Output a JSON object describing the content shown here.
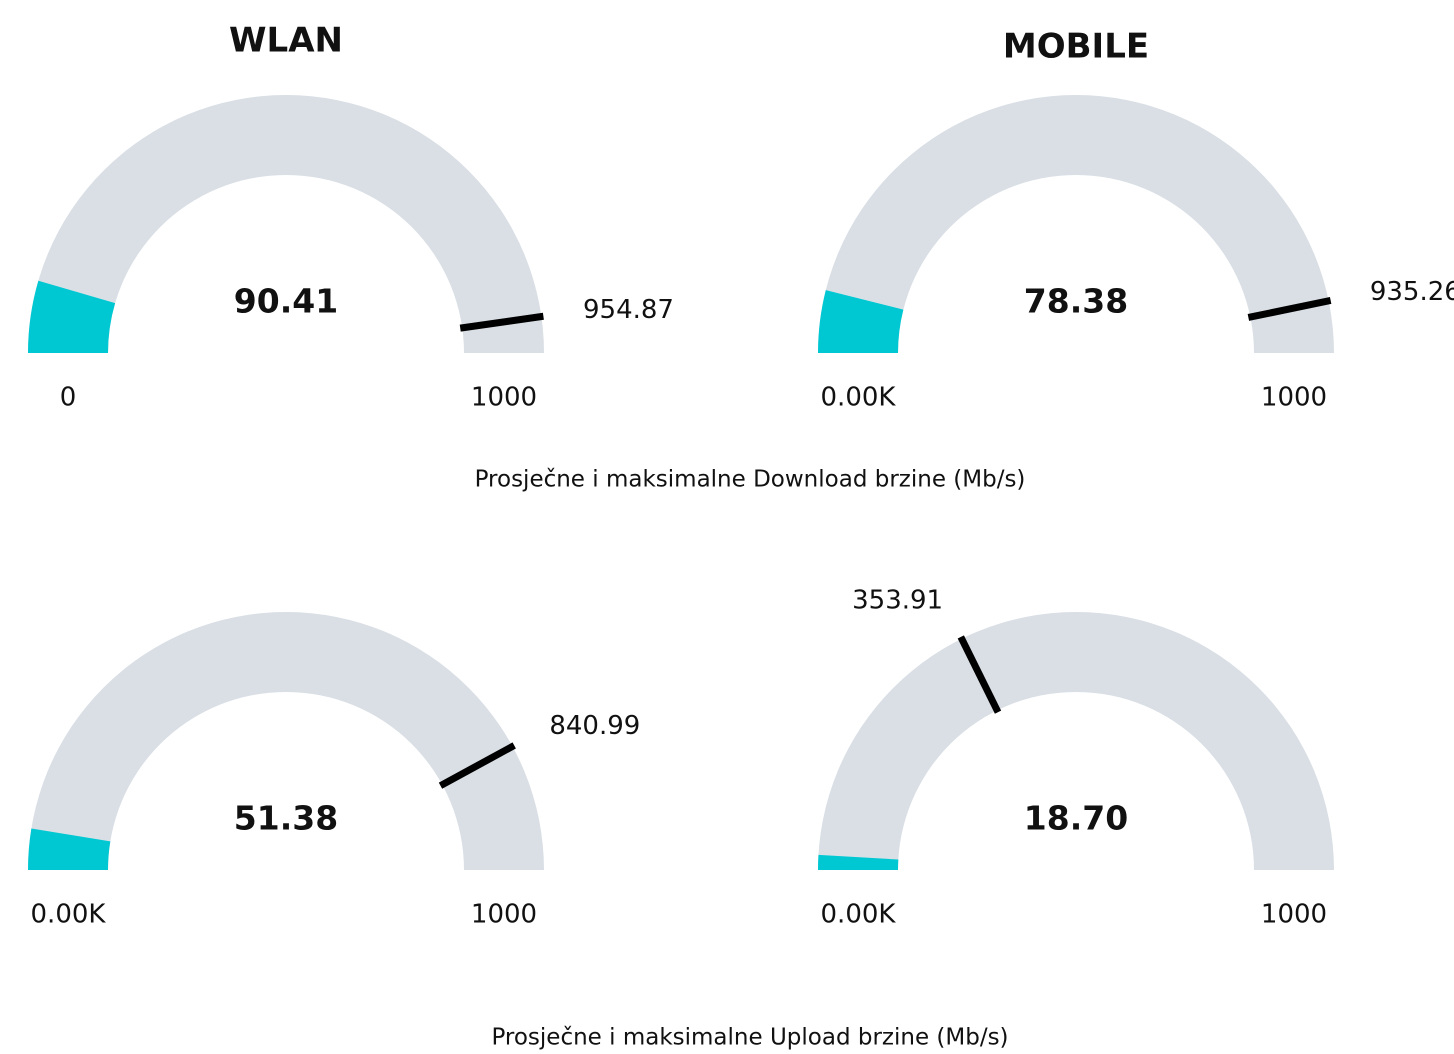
{
  "chart_data": [
    {
      "type": "gauge",
      "title": "WLAN",
      "value": 90.41,
      "marker": 954.87,
      "min": 0,
      "max": 1000,
      "color": "#00c8d2",
      "track_color": "#d9dfe5",
      "marker_color": "#000000"
    },
    {
      "type": "gauge",
      "title": "MOBILE",
      "value": 78.38,
      "marker": 935.26,
      "min": {
        "value": 0,
        "label": "0.00K"
      },
      "max": 1000,
      "color": "#00c8d2",
      "track_color": "#d9dfe5",
      "marker_color": "#000000"
    },
    {
      "type": "gauge",
      "value": 51.38,
      "marker": 840.99,
      "min": {
        "value": 0,
        "label": "0.00K"
      },
      "max": 1000,
      "color": "#00c8d2",
      "track_color": "#d9dfe5",
      "marker_color": "#000000"
    },
    {
      "type": "gauge",
      "value": 18.7,
      "value_label": "18.70",
      "marker": 353.91,
      "min": {
        "value": 0,
        "label": "0.00K"
      },
      "max": 1000,
      "color": "#00c8d2",
      "track_color": "#d9dfe5",
      "marker_color": "#000000"
    }
  ],
  "captions": [
    "Prosječne i maksimalne Download brzine (Mb/s)",
    "Prosječne i maksimalne Upload brzine (Mb/s)"
  ]
}
